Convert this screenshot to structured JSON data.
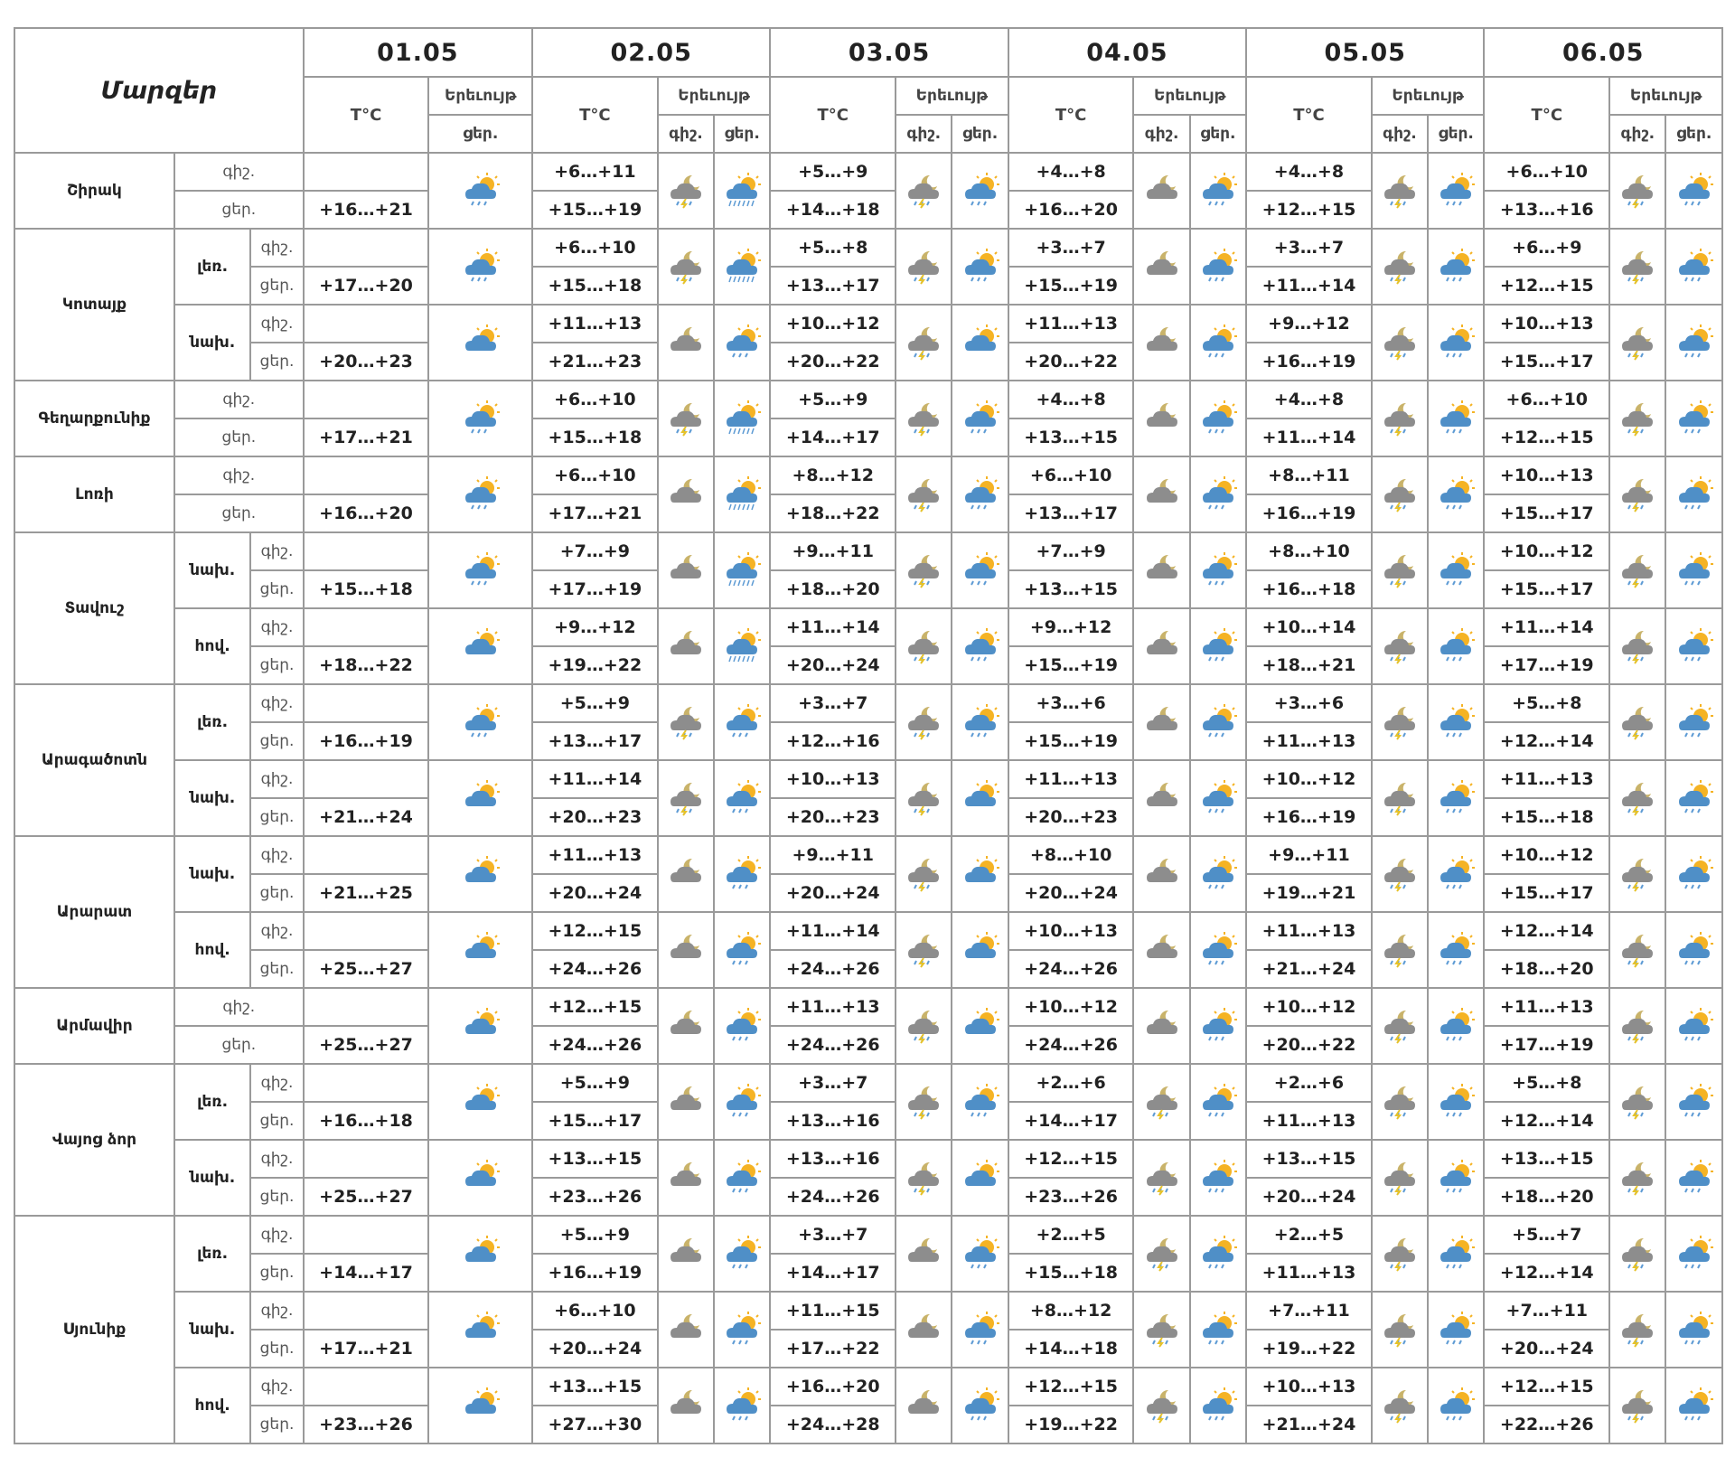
{
  "header": {
    "title": "Մարզեր",
    "dates": [
      "01.05",
      "02.05",
      "03.05",
      "04.05",
      "05.05",
      "06.05"
    ],
    "temp_label": "T°C",
    "phenomena_label": "Երեւույթ",
    "day_label": "ցեր.",
    "night_label": "գիշ."
  },
  "rows": [
    {
      "region": "Շիրակ",
      "sub": "",
      "night_label": "գիշ.",
      "day_label": "ցեր.",
      "d1": "+16…+21",
      "d1_icon": "day-cloud-rain",
      "n2": "+6…+11",
      "d2": "+15…+19",
      "n2_icon": "night-cloud-rain",
      "d2_icon": "cloud-sun-heavy-rain",
      "n3": "+5…+9",
      "d3": "+14…+18",
      "n3_icon": "night-cloud-rain",
      "d3_icon": "day-cloud-rain",
      "n4": "+4…+8",
      "d4": "+16…+20",
      "n4_icon": "night-cloud",
      "d4_icon": "day-cloud-rain",
      "n5": "+4…+8",
      "d5": "+12…+15",
      "n5_icon": "night-cloud-rain",
      "d5_icon": "day-cloud-rain",
      "n6": "+6…+10",
      "d6": "+13…+16",
      "n6_icon": "night-cloud-rain",
      "d6_icon": "day-cloud-rain"
    },
    {
      "region": "Կոտայք",
      "sub": "լեռ.",
      "night_label": "գիշ.",
      "day_label": "ցեր.",
      "d1": "+17…+20",
      "d1_icon": "day-cloud-rain",
      "n2": "+6…+10",
      "d2": "+15…+18",
      "n2_icon": "night-cloud-rain",
      "d2_icon": "cloud-sun-heavy-rain",
      "n3": "+5…+8",
      "d3": "+13…+17",
      "n3_icon": "night-cloud-rain",
      "d3_icon": "day-cloud-rain",
      "n4": "+3…+7",
      "d4": "+15…+19",
      "n4_icon": "night-cloud",
      "d4_icon": "day-cloud-rain",
      "n5": "+3…+7",
      "d5": "+11…+14",
      "n5_icon": "night-cloud-rain",
      "d5_icon": "day-cloud-rain",
      "n6": "+6…+9",
      "d6": "+12…+15",
      "n6_icon": "night-cloud-rain",
      "d6_icon": "day-cloud-rain"
    },
    {
      "region": "",
      "sub": "նախ.",
      "night_label": "գիշ.",
      "day_label": "ցեր.",
      "d1": "+20…+23",
      "d1_icon": "day-cloud",
      "n2": "+11…+13",
      "d2": "+21…+23",
      "n2_icon": "night-cloud",
      "d2_icon": "day-cloud-rain",
      "n3": "+10…+12",
      "d3": "+20…+22",
      "n3_icon": "night-cloud-rain",
      "d3_icon": "day-cloud",
      "n4": "+11…+13",
      "d4": "+20…+22",
      "n4_icon": "night-cloud",
      "d4_icon": "day-cloud-rain",
      "n5": "+9…+12",
      "d5": "+16…+19",
      "n5_icon": "night-cloud-rain",
      "d5_icon": "day-cloud-rain",
      "n6": "+10…+13",
      "d6": "+15…+17",
      "n6_icon": "night-cloud-rain",
      "d6_icon": "day-cloud-rain"
    },
    {
      "region": "Գեղարքունիք",
      "sub": "",
      "night_label": "գիշ.",
      "day_label": "ցեր.",
      "d1": "+17…+21",
      "d1_icon": "day-cloud-rain",
      "n2": "+6…+10",
      "d2": "+15…+18",
      "n2_icon": "night-cloud-rain",
      "d2_icon": "cloud-sun-heavy-rain",
      "n3": "+5…+9",
      "d3": "+14…+17",
      "n3_icon": "night-cloud-rain",
      "d3_icon": "day-cloud-rain",
      "n4": "+4…+8",
      "d4": "+13…+15",
      "n4_icon": "night-cloud",
      "d4_icon": "day-cloud-rain",
      "n5": "+4…+8",
      "d5": "+11…+14",
      "n5_icon": "night-cloud-rain",
      "d5_icon": "day-cloud-rain",
      "n6": "+6…+10",
      "d6": "+12…+15",
      "n6_icon": "night-cloud-rain",
      "d6_icon": "day-cloud-rain"
    },
    {
      "region": "Լոռի",
      "sub": "",
      "night_label": "գիշ.",
      "day_label": "ցեր.",
      "d1": "+16…+20",
      "d1_icon": "day-cloud-rain",
      "n2": "+6…+10",
      "d2": "+17…+21",
      "n2_icon": "night-cloud",
      "d2_icon": "cloud-sun-heavy-rain",
      "n3": "+8…+12",
      "d3": "+18…+22",
      "n3_icon": "night-cloud-rain",
      "d3_icon": "day-cloud-rain",
      "n4": "+6…+10",
      "d4": "+13…+17",
      "n4_icon": "night-cloud",
      "d4_icon": "day-cloud-rain",
      "n5": "+8…+11",
      "d5": "+16…+19",
      "n5_icon": "night-cloud-rain",
      "d5_icon": "day-cloud-rain",
      "n6": "+10…+13",
      "d6": "+15…+17",
      "n6_icon": "night-cloud-rain",
      "d6_icon": "day-cloud-rain"
    },
    {
      "region": "Տավուշ",
      "sub": "նախ.",
      "night_label": "գիշ.",
      "day_label": "ցեր.",
      "d1": "+15…+18",
      "d1_icon": "day-cloud-rain",
      "n2": "+7…+9",
      "d2": "+17…+19",
      "n2_icon": "night-cloud",
      "d2_icon": "cloud-sun-heavy-rain",
      "n3": "+9…+11",
      "d3": "+18…+20",
      "n3_icon": "night-cloud-rain",
      "d3_icon": "day-cloud-rain",
      "n4": "+7…+9",
      "d4": "+13…+15",
      "n4_icon": "night-cloud",
      "d4_icon": "day-cloud-rain",
      "n5": "+8…+10",
      "d5": "+16…+18",
      "n5_icon": "night-cloud-rain",
      "d5_icon": "day-cloud-rain",
      "n6": "+10…+12",
      "d6": "+15…+17",
      "n6_icon": "night-cloud-rain",
      "d6_icon": "day-cloud-rain"
    },
    {
      "region": "",
      "sub": "հով.",
      "night_label": "գիշ.",
      "day_label": "ցեր.",
      "d1": "+18…+22",
      "d1_icon": "day-cloud",
      "n2": "+9…+12",
      "d2": "+19…+22",
      "n2_icon": "night-cloud",
      "d2_icon": "cloud-sun-heavy-rain",
      "n3": "+11…+14",
      "d3": "+20…+24",
      "n3_icon": "night-cloud-rain",
      "d3_icon": "day-cloud-rain",
      "n4": "+9…+12",
      "d4": "+15…+19",
      "n4_icon": "night-cloud",
      "d4_icon": "day-cloud-rain",
      "n5": "+10…+14",
      "d5": "+18…+21",
      "n5_icon": "night-cloud-rain",
      "d5_icon": "day-cloud-rain",
      "n6": "+11…+14",
      "d6": "+17…+19",
      "n6_icon": "night-cloud-rain",
      "d6_icon": "day-cloud-rain"
    },
    {
      "region": "Արագածոտն",
      "sub": "լեռ.",
      "night_label": "գիշ.",
      "day_label": "ցեր.",
      "d1": "+16…+19",
      "d1_icon": "day-cloud-rain",
      "n2": "+5…+9",
      "d2": "+13…+17",
      "n2_icon": "night-cloud-rain",
      "d2_icon": "day-cloud-rain",
      "n3": "+3…+7",
      "d3": "+12…+16",
      "n3_icon": "night-cloud-rain",
      "d3_icon": "day-cloud-rain",
      "n4": "+3…+6",
      "d4": "+15…+19",
      "n4_icon": "night-cloud",
      "d4_icon": "day-cloud-rain",
      "n5": "+3…+6",
      "d5": "+11…+13",
      "n5_icon": "night-cloud-rain",
      "d5_icon": "day-cloud-rain",
      "n6": "+5…+8",
      "d6": "+12…+14",
      "n6_icon": "night-cloud-rain",
      "d6_icon": "day-cloud-rain"
    },
    {
      "region": "",
      "sub": "նախ.",
      "night_label": "գիշ.",
      "day_label": "ցեր.",
      "d1": "+21…+24",
      "d1_icon": "day-cloud",
      "n2": "+11…+14",
      "d2": "+20…+23",
      "n2_icon": "night-cloud-rain",
      "d2_icon": "day-cloud-rain",
      "n3": "+10…+13",
      "d3": "+20…+23",
      "n3_icon": "night-cloud-rain",
      "d3_icon": "day-cloud",
      "n4": "+11…+13",
      "d4": "+20…+23",
      "n4_icon": "night-cloud",
      "d4_icon": "day-cloud-rain",
      "n5": "+10…+12",
      "d5": "+16…+19",
      "n5_icon": "night-cloud-rain",
      "d5_icon": "day-cloud-rain",
      "n6": "+11…+13",
      "d6": "+15…+18",
      "n6_icon": "night-cloud-rain",
      "d6_icon": "day-cloud-rain"
    },
    {
      "region": "Արարատ",
      "sub": "նախ.",
      "night_label": "գիշ.",
      "day_label": "ցեր.",
      "d1": "+21…+25",
      "d1_icon": "day-cloud",
      "n2": "+11…+13",
      "d2": "+20…+24",
      "n2_icon": "night-cloud",
      "d2_icon": "day-cloud-rain",
      "n3": "+9…+11",
      "d3": "+20…+24",
      "n3_icon": "night-cloud-rain",
      "d3_icon": "day-cloud",
      "n4": "+8…+10",
      "d4": "+20…+24",
      "n4_icon": "night-cloud",
      "d4_icon": "day-cloud-rain",
      "n5": "+9…+11",
      "d5": "+19…+21",
      "n5_icon": "night-cloud-rain",
      "d5_icon": "day-cloud-rain",
      "n6": "+10…+12",
      "d6": "+15…+17",
      "n6_icon": "night-cloud-rain",
      "d6_icon": "day-cloud-rain"
    },
    {
      "region": "",
      "sub": "հով.",
      "night_label": "գիշ.",
      "day_label": "ցեր.",
      "d1": "+25…+27",
      "d1_icon": "day-cloud",
      "n2": "+12…+15",
      "d2": "+24…+26",
      "n2_icon": "night-cloud",
      "d2_icon": "day-cloud-rain",
      "n3": "+11…+14",
      "d3": "+24…+26",
      "n3_icon": "night-cloud-rain",
      "d3_icon": "day-cloud",
      "n4": "+10…+13",
      "d4": "+24…+26",
      "n4_icon": "night-cloud",
      "d4_icon": "day-cloud-rain",
      "n5": "+11…+13",
      "d5": "+21…+24",
      "n5_icon": "night-cloud-rain",
      "d5_icon": "day-cloud-rain",
      "n6": "+12…+14",
      "d6": "+18…+20",
      "n6_icon": "night-cloud-rain",
      "d6_icon": "day-cloud-rain"
    },
    {
      "region": "Արմավիր",
      "sub": "",
      "night_label": "գիշ.",
      "day_label": "ցեր.",
      "d1": "+25…+27",
      "d1_icon": "day-cloud",
      "n2": "+12…+15",
      "d2": "+24…+26",
      "n2_icon": "night-cloud",
      "d2_icon": "day-cloud-rain",
      "n3": "+11…+13",
      "d3": "+24…+26",
      "n3_icon": "night-cloud-rain",
      "d3_icon": "day-cloud",
      "n4": "+10…+12",
      "d4": "+24…+26",
      "n4_icon": "night-cloud",
      "d4_icon": "day-cloud-rain",
      "n5": "+10…+12",
      "d5": "+20…+22",
      "n5_icon": "night-cloud-rain",
      "d5_icon": "day-cloud-rain",
      "n6": "+11…+13",
      "d6": "+17…+19",
      "n6_icon": "night-cloud-rain",
      "d6_icon": "day-cloud-rain"
    },
    {
      "region": "Վայոց ձոր",
      "sub": "լեռ.",
      "night_label": "գիշ.",
      "day_label": "ցեր.",
      "d1": "+16…+18",
      "d1_icon": "day-cloud",
      "n2": "+5…+9",
      "d2": "+15…+17",
      "n2_icon": "night-cloud",
      "d2_icon": "day-cloud-rain",
      "n3": "+3…+7",
      "d3": "+13…+16",
      "n3_icon": "night-cloud-rain",
      "d3_icon": "day-cloud-rain",
      "n4": "+2…+6",
      "d4": "+14…+17",
      "n4_icon": "night-cloud-rain",
      "d4_icon": "day-cloud-rain",
      "n5": "+2…+6",
      "d5": "+11…+13",
      "n5_icon": "night-cloud-rain",
      "d5_icon": "day-cloud-rain",
      "n6": "+5…+8",
      "d6": "+12…+14",
      "n6_icon": "night-cloud-rain",
      "d6_icon": "day-cloud-rain"
    },
    {
      "region": "",
      "sub": "նախ.",
      "night_label": "գիշ.",
      "day_label": "ցեր.",
      "d1": "+25…+27",
      "d1_icon": "day-cloud",
      "n2": "+13…+15",
      "d2": "+23…+26",
      "n2_icon": "night-cloud",
      "d2_icon": "day-cloud-rain",
      "n3": "+13…+16",
      "d3": "+24…+26",
      "n3_icon": "night-cloud-rain",
      "d3_icon": "day-cloud",
      "n4": "+12…+15",
      "d4": "+23…+26",
      "n4_icon": "night-cloud-rain",
      "d4_icon": "day-cloud-rain",
      "n5": "+13…+15",
      "d5": "+20…+24",
      "n5_icon": "night-cloud-rain",
      "d5_icon": "day-cloud-rain",
      "n6": "+13…+15",
      "d6": "+18…+20",
      "n6_icon": "night-cloud-rain",
      "d6_icon": "day-cloud-rain"
    },
    {
      "region": "Սյունիք",
      "sub": "լեռ.",
      "night_label": "գիշ.",
      "day_label": "ցեր.",
      "d1": "+14…+17",
      "d1_icon": "day-cloud",
      "n2": "+5…+9",
      "d2": "+16…+19",
      "n2_icon": "night-cloud",
      "d2_icon": "day-cloud-rain",
      "n3": "+3…+7",
      "d3": "+14…+17",
      "n3_icon": "night-cloud",
      "d3_icon": "day-cloud-rain",
      "n4": "+2…+5",
      "d4": "+15…+18",
      "n4_icon": "night-cloud-rain",
      "d4_icon": "day-cloud-rain",
      "n5": "+2…+5",
      "d5": "+11…+13",
      "n5_icon": "night-cloud-rain",
      "d5_icon": "day-cloud-rain",
      "n6": "+5…+7",
      "d6": "+12…+14",
      "n6_icon": "night-cloud-rain",
      "d6_icon": "day-cloud-rain"
    },
    {
      "region": "",
      "sub": "նախ.",
      "night_label": "գիշ.",
      "day_label": "ցեր.",
      "d1": "+17…+21",
      "d1_icon": "day-cloud",
      "n2": "+6…+10",
      "d2": "+20…+24",
      "n2_icon": "night-cloud",
      "d2_icon": "day-cloud-rain",
      "n3": "+11…+15",
      "d3": "+17…+22",
      "n3_icon": "night-cloud",
      "d3_icon": "day-cloud-rain",
      "n4": "+8…+12",
      "d4": "+14…+18",
      "n4_icon": "night-cloud-rain",
      "d4_icon": "day-cloud-rain",
      "n5": "+7…+11",
      "d5": "+19…+22",
      "n5_icon": "night-cloud-rain",
      "d5_icon": "day-cloud-rain",
      "n6": "+7…+11",
      "d6": "+20…+24",
      "n6_icon": "night-cloud-rain",
      "d6_icon": "day-cloud-rain"
    },
    {
      "region": "",
      "sub": "հով.",
      "night_label": "գիշ.",
      "day_label": "ցեր.",
      "d1": "+23…+26",
      "d1_icon": "day-cloud",
      "n2": "+13…+15",
      "d2": "+27…+30",
      "n2_icon": "night-cloud",
      "d2_icon": "day-cloud-rain",
      "n3": "+16…+20",
      "d3": "+24…+28",
      "n3_icon": "night-cloud",
      "d3_icon": "day-cloud-rain",
      "n4": "+12…+15",
      "d4": "+19…+22",
      "n4_icon": "night-cloud-rain",
      "d4_icon": "day-cloud-rain",
      "n5": "+10…+13",
      "d5": "+21…+24",
      "n5_icon": "night-cloud-rain",
      "d5_icon": "day-cloud-rain",
      "n6": "+12…+15",
      "d6": "+22…+26",
      "n6_icon": "night-cloud-rain",
      "d6_icon": "day-cloud-rain"
    }
  ]
}
